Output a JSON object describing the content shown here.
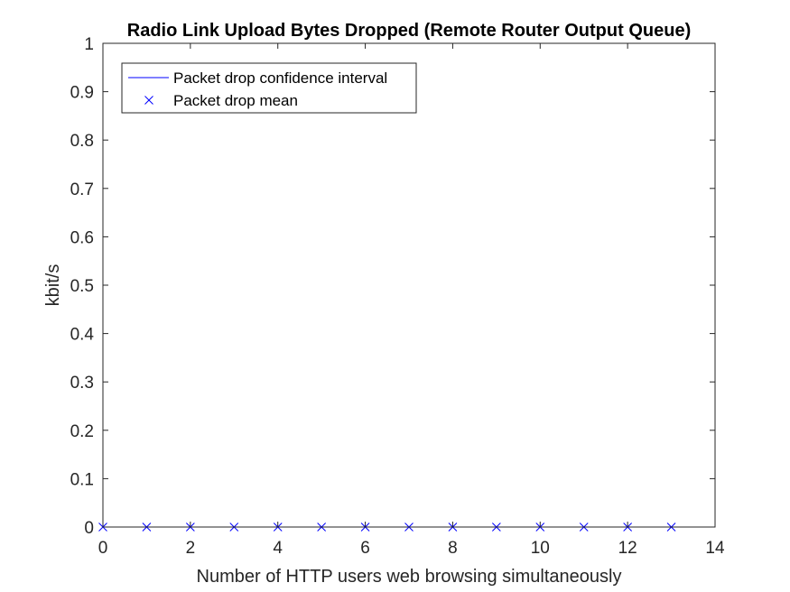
{
  "chart_data": {
    "type": "line",
    "title": "Radio Link Upload Bytes Dropped (Remote Router Output Queue)",
    "xlabel": "Number of HTTP users web browsing simultaneously",
    "ylabel": "kbit/s",
    "xlim": [
      0,
      14
    ],
    "ylim": [
      0,
      1
    ],
    "xticks": [
      "0",
      "2",
      "4",
      "6",
      "8",
      "10",
      "12",
      "14"
    ],
    "yticks": [
      "0",
      "0.1",
      "0.2",
      "0.3",
      "0.4",
      "0.5",
      "0.6",
      "0.7",
      "0.8",
      "0.9",
      "1"
    ],
    "grid": false,
    "legend_position": "top-left",
    "series": [
      {
        "name": "Packet drop confidence interval",
        "style": "line",
        "color": "#0000ff",
        "x": [
          0,
          1,
          2,
          3,
          4,
          5,
          6,
          7,
          8,
          9,
          10,
          11,
          12,
          13
        ],
        "y": [
          0,
          0,
          0,
          0,
          0,
          0,
          0,
          0,
          0,
          0,
          0,
          0,
          0,
          0
        ]
      },
      {
        "name": "Packet drop mean",
        "style": "marker-x",
        "color": "#0000ff",
        "x": [
          0,
          1,
          2,
          3,
          4,
          5,
          6,
          7,
          8,
          9,
          10,
          11,
          12,
          13
        ],
        "y": [
          0,
          0,
          0,
          0,
          0,
          0,
          0,
          0,
          0,
          0,
          0,
          0,
          0,
          0
        ]
      }
    ]
  }
}
